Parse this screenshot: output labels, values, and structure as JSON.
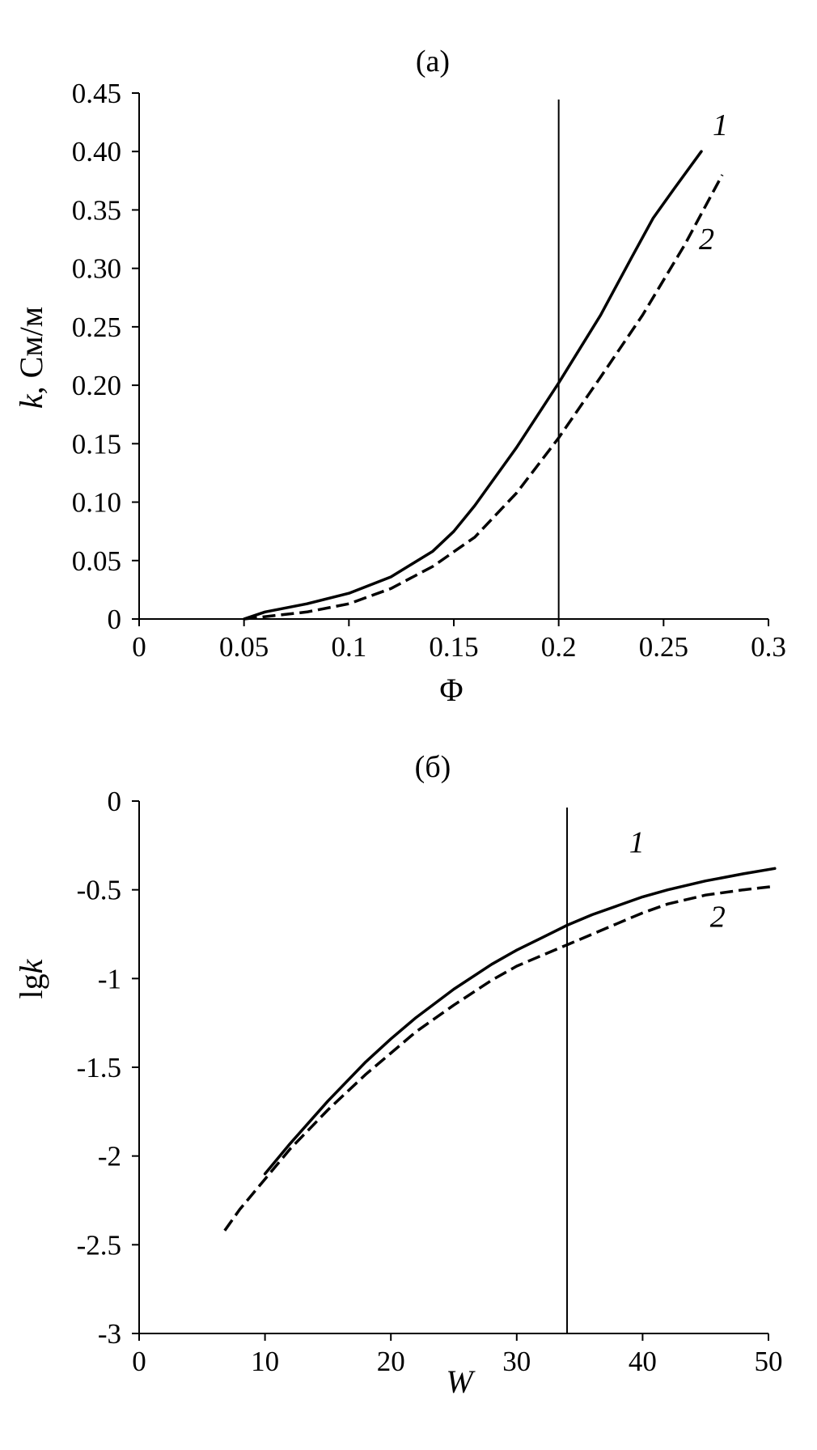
{
  "chart_data": [
    {
      "type": "line",
      "title": "(a)",
      "xlabel": "Φ",
      "ylabel": {
        "var": "k",
        "unit": ", См/м"
      },
      "xlim": [
        0,
        0.3
      ],
      "ylim": [
        0,
        0.45
      ],
      "xticks": [
        "0",
        "0.05",
        "0.1",
        "0.15",
        "0.2",
        "0.25",
        "0.3"
      ],
      "yticks": [
        "0",
        "0.05",
        "0.10",
        "0.15",
        "0.20",
        "0.25",
        "0.30",
        "0.35",
        "0.40",
        "0.45"
      ],
      "grid": false,
      "vline": 0.2,
      "series": [
        {
          "name": "1",
          "style": "solid",
          "x": [
            0.05,
            0.06,
            0.08,
            0.1,
            0.12,
            0.14,
            0.15,
            0.16,
            0.18,
            0.2,
            0.22,
            0.235,
            0.245,
            0.255,
            0.268
          ],
          "y": [
            0.0,
            0.006,
            0.013,
            0.022,
            0.036,
            0.058,
            0.075,
            0.097,
            0.147,
            0.202,
            0.26,
            0.31,
            0.343,
            0.368,
            0.4
          ]
        },
        {
          "name": "2",
          "style": "dashed",
          "x": [
            0.05,
            0.06,
            0.08,
            0.1,
            0.12,
            0.14,
            0.16,
            0.18,
            0.2,
            0.22,
            0.24,
            0.26,
            0.278
          ],
          "y": [
            0.0,
            0.002,
            0.006,
            0.013,
            0.026,
            0.045,
            0.07,
            0.108,
            0.155,
            0.207,
            0.26,
            0.32,
            0.38
          ]
        }
      ]
    },
    {
      "type": "line",
      "title": "(б)",
      "xlabel": "W",
      "ylabel": {
        "var": "k",
        "unit": "lg"
      },
      "xlim": [
        0,
        50
      ],
      "ylim": [
        -3,
        0
      ],
      "xticks": [
        "0",
        "10",
        "20",
        "30",
        "40",
        "50"
      ],
      "yticks": [
        "-3",
        "-2.5",
        "-2",
        "-1.5",
        "-1",
        "-0.5",
        "0"
      ],
      "grid": false,
      "vline": 34,
      "series": [
        {
          "name": "1",
          "style": "solid",
          "x": [
            10,
            12,
            15,
            18,
            20,
            22,
            25,
            28,
            30,
            32,
            34,
            36,
            38,
            40,
            42,
            45,
            48,
            50.5
          ],
          "y": [
            -2.1,
            -1.93,
            -1.69,
            -1.47,
            -1.34,
            -1.22,
            -1.06,
            -0.92,
            -0.84,
            -0.77,
            -0.7,
            -0.64,
            -0.59,
            -0.54,
            -0.5,
            -0.45,
            -0.41,
            -0.38
          ]
        },
        {
          "name": "2",
          "style": "dashed",
          "x": [
            6.8,
            8,
            10,
            12,
            15,
            18,
            20,
            22,
            25,
            28,
            30,
            32,
            34,
            36,
            38,
            40,
            42,
            45,
            48,
            50.5
          ],
          "y": [
            -2.42,
            -2.3,
            -2.13,
            -1.96,
            -1.74,
            -1.54,
            -1.42,
            -1.3,
            -1.15,
            -1.01,
            -0.93,
            -0.87,
            -0.81,
            -0.75,
            -0.69,
            -0.63,
            -0.58,
            -0.53,
            -0.5,
            -0.48
          ]
        }
      ]
    }
  ]
}
